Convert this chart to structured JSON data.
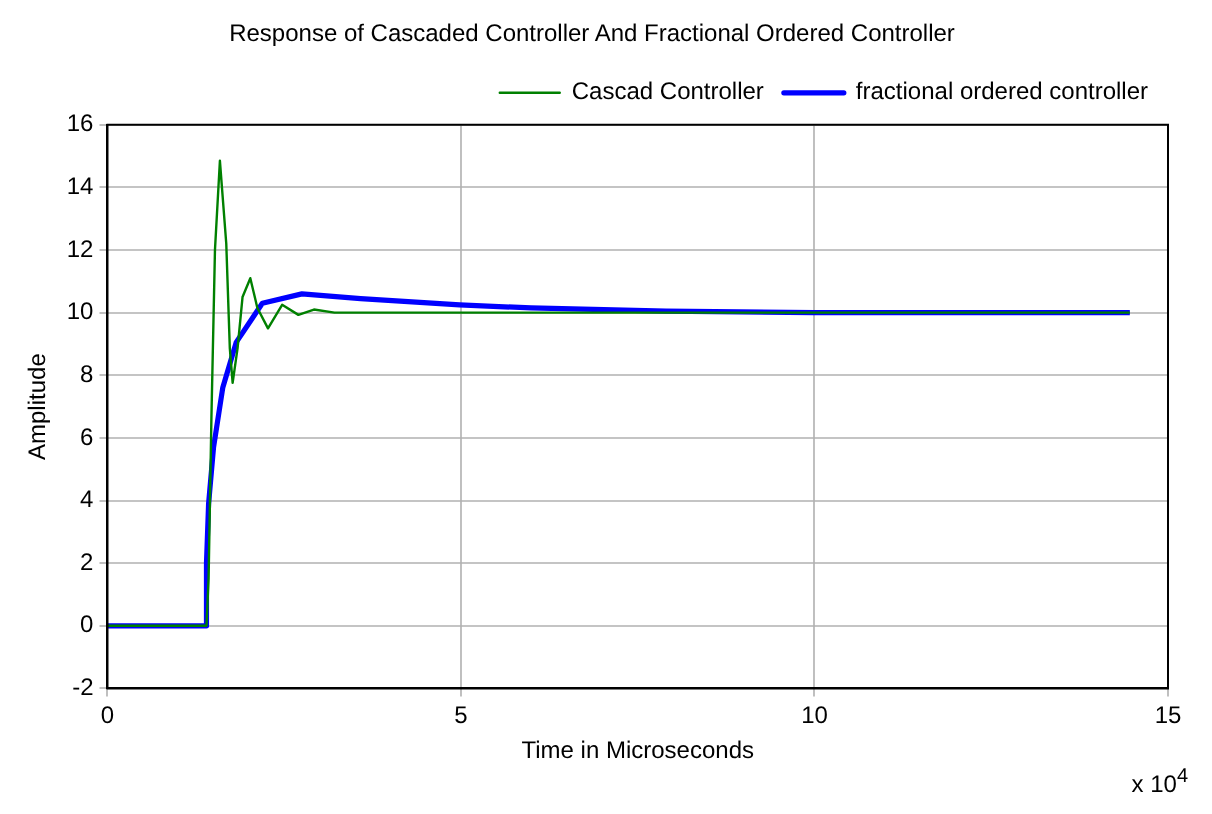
{
  "chart_data": {
    "type": "line",
    "title": "Response of Cascaded Controller And Fractional Ordered Controller",
    "xlabel": "Time in Microseconds",
    "ylabel": "Amplitude",
    "annotations": [
      "x 10$^{4}$"
    ],
    "xlim": [
      0,
      15
    ],
    "xticks": [
      0,
      5,
      10,
      15
    ],
    "ylim": [
      -2,
      16
    ],
    "yticks": [
      -2,
      0,
      2,
      4,
      6,
      8,
      10,
      12,
      14,
      16
    ],
    "grid": true,
    "legend": "top right",
    "line_style": "solid",
    "marker": "none",
    "series": [
      {
        "name": "fractional ordered controller",
        "color": "#0000ff",
        "x": [
          0,
          1.4,
          1.4,
          1.43,
          1.5,
          1.63,
          1.82,
          2.19,
          2.75,
          3.58,
          4.98,
          5.99,
          7.9,
          10,
          14.46
        ],
        "values": [
          0,
          0,
          2,
          3.9,
          5.7,
          7.6,
          9.05,
          10.3,
          10.6,
          10.45,
          10.25,
          10.15,
          10.05,
          10,
          10
        ]
      },
      {
        "name": "Cascad Controller",
        "color": "#008000",
        "x": [
          0,
          1.4,
          1.43,
          1.47,
          1.52,
          1.59,
          1.68,
          1.73,
          1.77,
          1.84,
          1.91,
          2.02,
          2.12,
          2.27,
          2.47,
          2.7,
          2.92,
          3.21,
          14.46
        ],
        "values": [
          0,
          0,
          1.5,
          6.66,
          12,
          14.85,
          12.2,
          8.87,
          7.76,
          8.87,
          10.5,
          11.1,
          10.15,
          9.5,
          10.25,
          9.93,
          10.1,
          10,
          10
        ]
      }
    ]
  }
}
